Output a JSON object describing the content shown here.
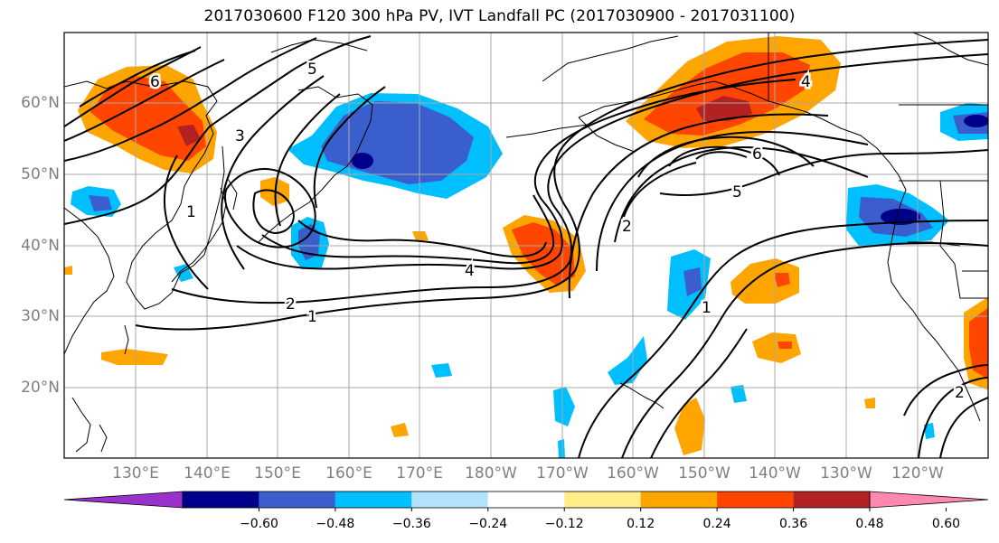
{
  "title": "2017030600 F120 300 hPa PV, IVT Landfall PC (2017030900 - 2017031100)",
  "lat_labels": [
    "60°N",
    "50°N",
    "40°N",
    "30°N",
    "20°N"
  ],
  "lon_labels": [
    "130°E",
    "140°E",
    "150°E",
    "160°E",
    "170°E",
    "180°W",
    "170°W",
    "160°W",
    "150°W",
    "140°W",
    "130°W",
    "120°W"
  ],
  "colorbar": {
    "ticks": [
      "−0.60",
      "−0.48",
      "−0.36",
      "−0.24",
      "−0.12",
      "0.12",
      "0.24",
      "0.36",
      "0.48",
      "0.60"
    ],
    "colors": [
      "#9932cc",
      "#00008b",
      "#3a5fcd",
      "#00bfff",
      "#b2e2ff",
      "#ffffff",
      "#ffed8a",
      "#ffa500",
      "#ff4500",
      "#b22222",
      "#ff88b0"
    ]
  },
  "contour_labels": [
    "1",
    "2",
    "4",
    "5",
    "6",
    "3",
    "1",
    "2",
    "4",
    "5",
    "6",
    "1",
    "2"
  ],
  "palette": {
    "dark_blue": "#00008b",
    "blue": "#3a5fcd",
    "light_blue": "#00bfff",
    "yellow": "#ffed8a",
    "orange": "#ffa500",
    "red_orange": "#ff4500",
    "dark_red": "#b22222",
    "gridline": "#a9a9a9",
    "tick_label": "#808080"
  }
}
